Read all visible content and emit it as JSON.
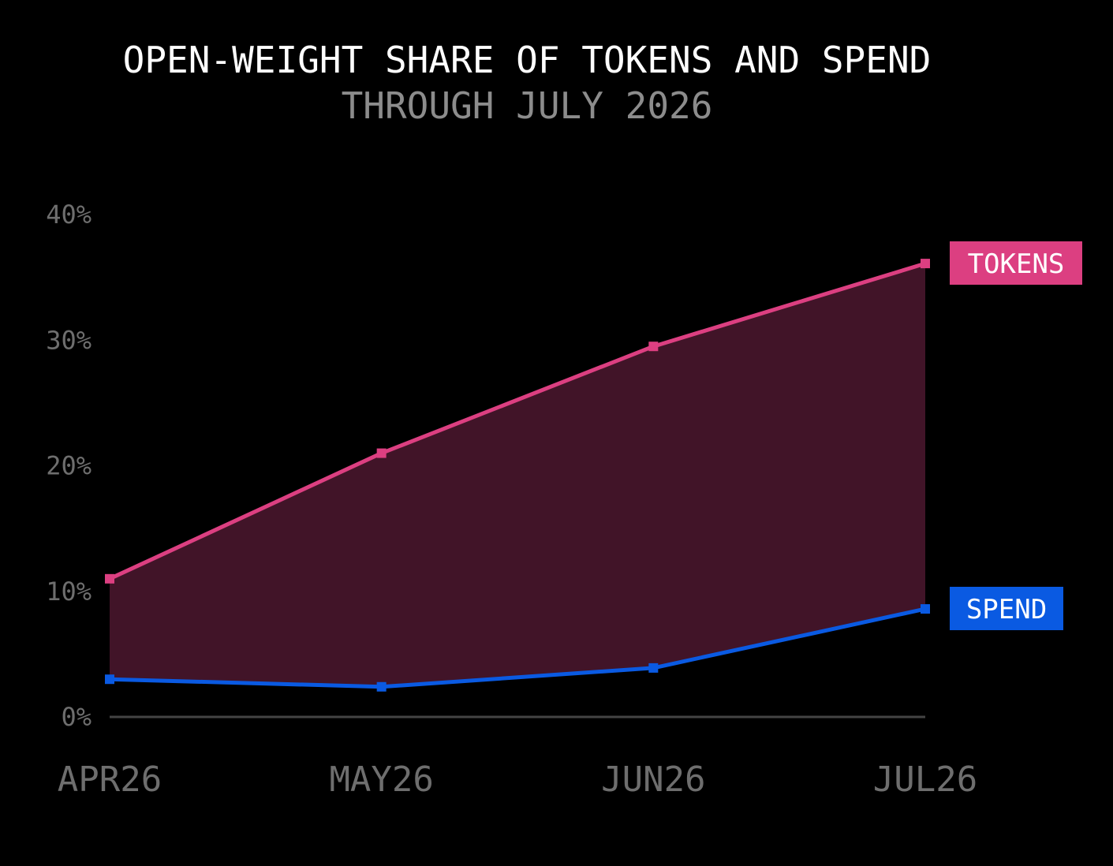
{
  "chart_data": {
    "type": "line",
    "title": "OPEN-WEIGHT SHARE OF TOKENS AND SPEND",
    "subtitle": "THROUGH JULY 2026",
    "categories": [
      "APR26",
      "MAY26",
      "JUN26",
      "JUL26"
    ],
    "y_ticks": [
      "0%",
      "10%",
      "20%",
      "30%",
      "40%"
    ],
    "ylim": [
      0,
      40
    ],
    "grid": false,
    "series": [
      {
        "name": "TOKENS",
        "values": [
          11.0,
          21.0,
          29.5,
          36.1
        ],
        "color": "#dc3f81"
      },
      {
        "name": "SPEND",
        "values": [
          3.0,
          2.4,
          3.9,
          8.6
        ],
        "color": "#0a5ae2"
      }
    ],
    "fill_between": {
      "color": "#411428"
    },
    "baseline_color": "#444444"
  }
}
